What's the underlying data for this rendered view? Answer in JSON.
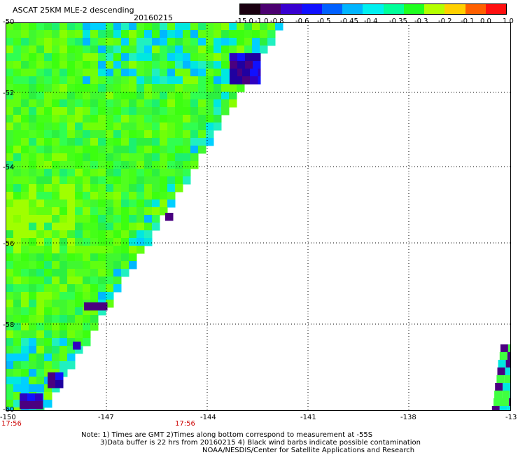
{
  "title": "ASCAT 25KM MLE-2 descending",
  "date": "20160215",
  "colorbar": {
    "labels": [
      "-15.0",
      "-1.0",
      "-0.8",
      "-0.6",
      "-0.5",
      "-0.45",
      "-0.4",
      "-0.35",
      "-0.3",
      "-0.2",
      "-0.1",
      "0.0",
      "1.0"
    ],
    "colors": [
      "#1a0010",
      "#4b0070",
      "#3800d0",
      "#1010ff",
      "#0060ff",
      "#00b4ff",
      "#00f0f0",
      "#00ff9a",
      "#20ff20",
      "#b4ff00",
      "#ffd000",
      "#ff6000",
      "#ff1010"
    ]
  },
  "axes": {
    "lat_labels": [
      "-50",
      "-52",
      "-54",
      "-56",
      "-58",
      "-60"
    ],
    "lon_labels": [
      "-150",
      "-147",
      "-144",
      "-141",
      "-138",
      "-13"
    ]
  },
  "time_labels": {
    "left": "17:56",
    "mid": "17:56"
  },
  "notes": {
    "line1": "Note: 1) Times are GMT 2)Times along bottom correspond to measurement at -55S",
    "line2": "3)Data buffer is 22 hrs from 20160215 4) Black wind barbs indicate possible contamination",
    "line3": "NOAA/NESDIS/Center for Satellite Applications and Research"
  }
}
